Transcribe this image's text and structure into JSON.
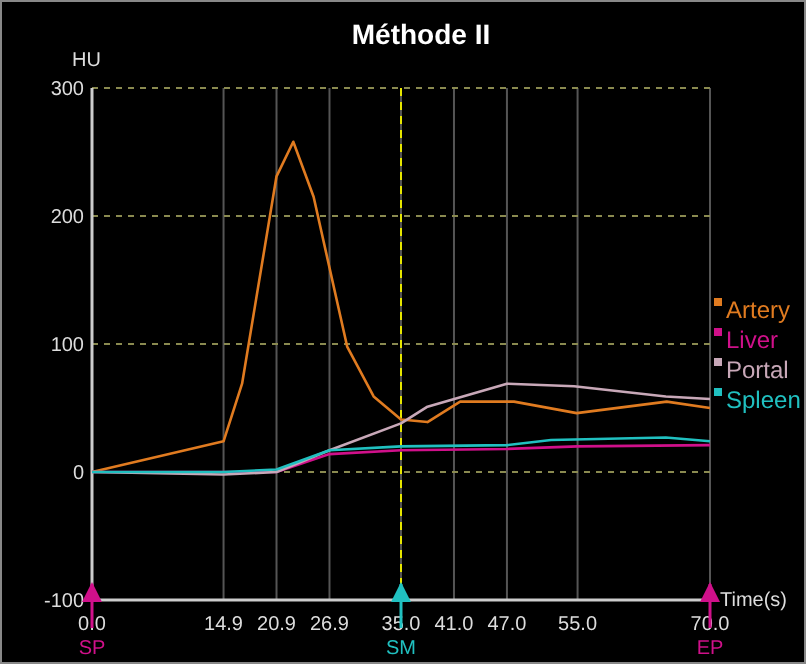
{
  "chart_data": {
    "type": "line",
    "title": "Méthode II",
    "ylabel": "HU",
    "xlabel": "Time(s)",
    "xlim": [
      0,
      70
    ],
    "ylim": [
      -100,
      300
    ],
    "xticks": [
      {
        "value": 0,
        "label": "0.0"
      },
      {
        "value": 14.9,
        "label": "14.9"
      },
      {
        "value": 20.9,
        "label": "20.9"
      },
      {
        "value": 26.9,
        "label": "26.9"
      },
      {
        "value": 35,
        "label": "35.0"
      },
      {
        "value": 41,
        "label": "41.0"
      },
      {
        "value": 47,
        "label": "47.0"
      },
      {
        "value": 55,
        "label": "55.0"
      },
      {
        "value": 70,
        "label": "70.0"
      }
    ],
    "yticks": [
      -100,
      0,
      100,
      200,
      300
    ],
    "grid": true,
    "legend": "right",
    "marker": "none",
    "line_style": "solid",
    "series": [
      {
        "name": "Artery",
        "color": "#e07b20",
        "x": [
          0,
          14.9,
          17,
          20.9,
          22.8,
          25.1,
          28.9,
          31.9,
          35,
          38,
          41.7,
          47.8,
          54.9,
          65.1,
          70
        ],
        "values": [
          0,
          24,
          69,
          231,
          258,
          215,
          98,
          59,
          41,
          39,
          55,
          55,
          46,
          55,
          50
        ]
      },
      {
        "name": "Liver",
        "color": "#d0108a",
        "x": [
          0,
          14.9,
          20.9,
          26.9,
          35,
          47,
          55,
          70
        ],
        "values": [
          0,
          0,
          0,
          14,
          17,
          18,
          20,
          21
        ]
      },
      {
        "name": "Portal",
        "color": "#c8a8b8",
        "x": [
          0,
          14.9,
          20.9,
          26.9,
          35,
          38,
          47,
          54.6,
          65,
          70
        ],
        "values": [
          0,
          -2,
          0,
          17,
          38,
          51,
          69,
          67,
          59,
          57
        ]
      },
      {
        "name": "Spleen",
        "color": "#20c0c0",
        "x": [
          0,
          14.9,
          20.9,
          26.9,
          35,
          47,
          52,
          65,
          70
        ],
        "values": [
          0,
          0,
          2,
          17,
          20,
          21,
          25,
          27,
          24
        ]
      }
    ],
    "ref_lines": [
      {
        "axis": "x",
        "value": 35,
        "label": "SM",
        "color": "#e6e600",
        "line_style": "dashed"
      }
    ],
    "annotations": [
      "SP",
      "EP"
    ]
  }
}
